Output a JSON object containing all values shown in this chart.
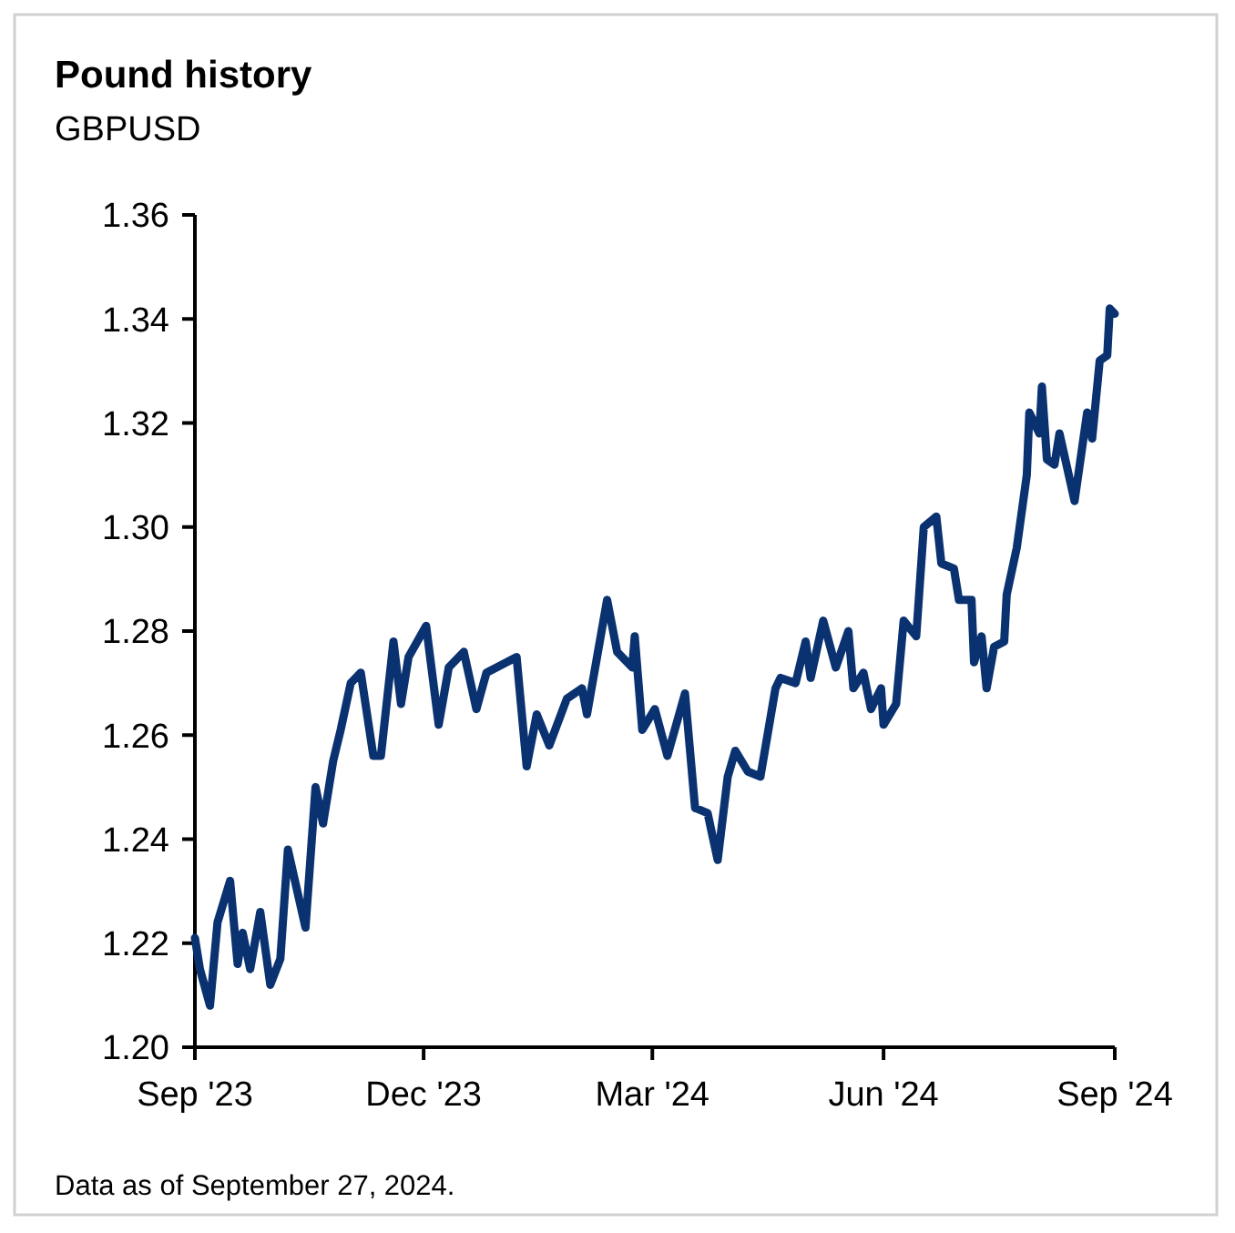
{
  "chart_data": {
    "type": "line",
    "title": "Pound history",
    "subtitle": "GBPUSD",
    "annotations": [
      "Data as of September 27, 2024."
    ],
    "x": [
      "2023-09-27",
      "2023-09-29",
      "2023-10-03",
      "2023-10-06",
      "2023-10-11",
      "2023-10-14",
      "2023-10-16",
      "2023-10-19",
      "2023-10-23",
      "2023-10-27",
      "2023-10-31",
      "2023-11-03",
      "2023-11-10",
      "2023-11-14",
      "2023-11-17",
      "2023-11-21",
      "2023-11-24",
      "2023-11-28",
      "2023-12-02",
      "2023-12-07",
      "2023-12-10",
      "2023-12-15",
      "2023-12-18",
      "2023-12-21",
      "2023-12-28",
      "2024-01-02",
      "2024-01-06",
      "2024-01-12",
      "2024-01-17",
      "2024-01-21",
      "2024-01-25",
      "2024-02-02",
      "2024-02-06",
      "2024-02-10",
      "2024-02-15",
      "2024-02-22",
      "2024-02-28",
      "2024-03-01",
      "2024-03-09",
      "2024-03-13",
      "2024-03-19",
      "2024-03-20",
      "2024-03-23",
      "2024-03-28",
      "2024-04-02",
      "2024-04-09",
      "2024-04-13",
      "2024-04-18",
      "2024-04-22",
      "2024-04-26",
      "2024-04-29",
      "2024-05-04",
      "2024-05-09",
      "2024-05-15",
      "2024-05-17",
      "2024-05-23",
      "2024-05-27",
      "2024-05-29",
      "2024-06-03",
      "2024-06-08",
      "2024-06-13",
      "2024-06-15",
      "2024-06-19",
      "2024-06-22",
      "2024-06-26",
      "2024-06-27",
      "2024-07-02",
      "2024-07-05",
      "2024-07-10",
      "2024-07-13",
      "2024-07-18",
      "2024-07-20",
      "2024-07-25",
      "2024-07-27",
      "2024-08-01",
      "2024-08-02",
      "2024-08-05",
      "2024-08-07",
      "2024-08-10",
      "2024-08-14",
      "2024-08-15",
      "2024-08-19",
      "2024-08-23",
      "2024-08-24",
      "2024-08-28",
      "2024-08-29",
      "2024-08-31",
      "2024-09-03",
      "2024-09-05",
      "2024-09-11",
      "2024-09-16",
      "2024-09-18",
      "2024-09-21",
      "2024-09-24",
      "2024-09-25",
      "2024-09-27"
    ],
    "series": [
      {
        "color": "#0a3270",
        "values": [
          1.221,
          1.215,
          1.208,
          1.224,
          1.232,
          1.216,
          1.222,
          1.215,
          1.226,
          1.212,
          1.217,
          1.238,
          1.223,
          1.25,
          1.243,
          1.255,
          1.261,
          1.27,
          1.272,
          1.256,
          1.256,
          1.278,
          1.266,
          1.275,
          1.281,
          1.262,
          1.273,
          1.276,
          1.265,
          1.272,
          1.273,
          1.275,
          1.254,
          1.264,
          1.258,
          1.267,
          1.269,
          1.264,
          1.286,
          1.276,
          1.273,
          1.279,
          1.261,
          1.265,
          1.256,
          1.268,
          1.246,
          1.245,
          1.236,
          1.252,
          1.257,
          1.253,
          1.252,
          1.269,
          1.271,
          1.27,
          1.278,
          1.271,
          1.282,
          1.273,
          1.28,
          1.269,
          1.272,
          1.265,
          1.269,
          1.262,
          1.266,
          1.282,
          1.279,
          1.3,
          1.302,
          1.293,
          1.292,
          1.286,
          1.286,
          1.274,
          1.279,
          1.269,
          1.277,
          1.278,
          1.287,
          1.296,
          1.31,
          1.322,
          1.318,
          1.327,
          1.313,
          1.312,
          1.318,
          1.305,
          1.322,
          1.317,
          1.332,
          1.333,
          1.342,
          1.341
        ]
      }
    ],
    "xlim": [
      "2023-09-27",
      "2024-09-27"
    ],
    "xticks": [
      {
        "value": "2023-09-27",
        "label": "Sep '23"
      },
      {
        "value": "2023-12-27",
        "label": "Dec '23"
      },
      {
        "value": "2024-03-27",
        "label": "Mar '24"
      },
      {
        "value": "2024-06-27",
        "label": "Jun '24"
      },
      {
        "value": "2024-09-27",
        "label": "Sep '24"
      }
    ],
    "ylim": [
      1.2,
      1.36
    ],
    "yticks": [
      {
        "value": 1.2,
        "label": "1.20"
      },
      {
        "value": 1.22,
        "label": "1.22"
      },
      {
        "value": 1.24,
        "label": "1.24"
      },
      {
        "value": 1.26,
        "label": "1.26"
      },
      {
        "value": 1.28,
        "label": "1.28"
      },
      {
        "value": 1.3,
        "label": "1.30"
      },
      {
        "value": 1.32,
        "label": "1.32"
      },
      {
        "value": 1.34,
        "label": "1.34"
      },
      {
        "value": 1.36,
        "label": "1.36"
      }
    ],
    "marker": "none",
    "line_style": "solid"
  }
}
